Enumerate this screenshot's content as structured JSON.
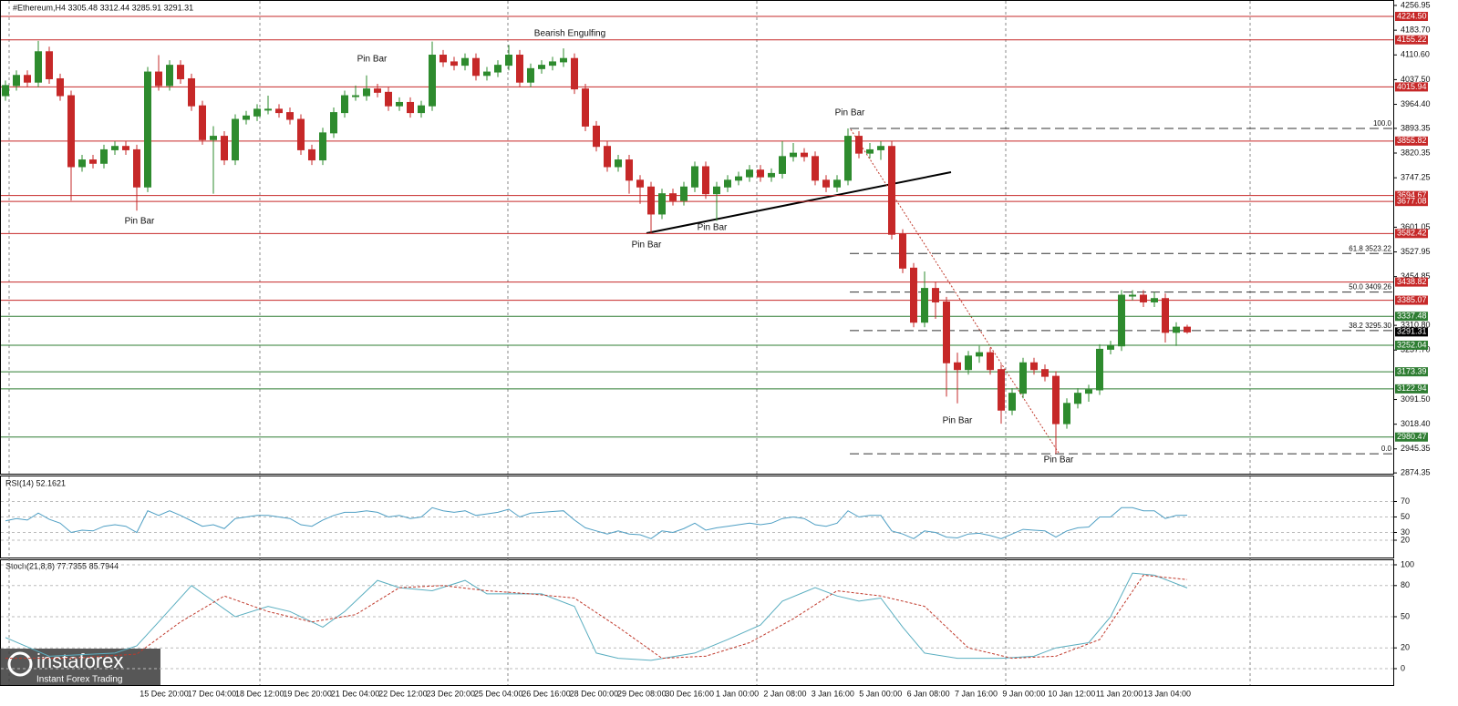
{
  "header": {
    "title": "#Ethereum,H4  3305.48 3312.44 3285.91 3291.31"
  },
  "logo": {
    "name": "instaforex",
    "tagline": "Instant Forex Trading"
  },
  "chart_data": [
    {
      "type": "candlestick",
      "up_color": "#2e8b2e",
      "down_color": "#c62828",
      "ylim": [
        2872,
        4273
      ],
      "yticks": [
        4256.95,
        {
          "value": 4183.7,
          "label": "4183.70"
        },
        {
          "value": 4110.6,
          "label": "4110.60"
        },
        {
          "value": 4037.5,
          "label": "4037.50"
        },
        {
          "value": 3964.4,
          "label": "3964.40"
        },
        3893.35,
        3820.35,
        3747.25,
        3601.05,
        3527.95,
        3454.85,
        {
          "value": 3310.8,
          "label": "3310.80"
        },
        {
          "value": 3237.7,
          "label": "3237.70"
        },
        {
          "value": 3091.5,
          "label": "3091.50"
        },
        {
          "value": 3018.4,
          "label": "3018.40"
        },
        2945.35,
        2874.35
      ],
      "open": [
        3990,
        4020,
        4050,
        4030,
        4120,
        4040,
        3990,
        3780,
        3800,
        3790,
        3830,
        3840,
        3830,
        3720,
        4060,
        4020,
        4080,
        4040,
        3960,
        3860,
        3870,
        3800,
        3920,
        3930,
        3950,
        3950,
        3940,
        3920,
        3830,
        3800,
        3880,
        3940,
        3990,
        3990,
        4010,
        4000,
        3960,
        3970,
        3940,
        3960,
        4110,
        4090,
        4080,
        4100,
        4050,
        4060,
        4080,
        4110,
        4030,
        4070,
        4080,
        4090,
        4100,
        4010,
        3900,
        3840,
        3780,
        3800,
        3740,
        3720,
        3640,
        3700,
        3680,
        3720,
        3780,
        3700,
        3720,
        3740,
        3750,
        3770,
        3750,
        3760,
        3810,
        3820,
        3810,
        3740,
        3720,
        3740,
        3870,
        3820,
        3830,
        3840,
        3580,
        3480,
        3320,
        3420,
        3380,
        3200,
        3180,
        3220,
        3230,
        3180,
        3060,
        3110,
        3200,
        3180,
        3160,
        3020,
        3080,
        3110,
        3120,
        3240,
        3250,
        3400,
        3400,
        3380,
        3390,
        3290,
        3305.48
      ],
      "high": [
        4035,
        4065,
        4065,
        4152,
        4135,
        4055,
        4005,
        3815,
        3815,
        3845,
        3855,
        3855,
        3845,
        4075,
        4110,
        4095,
        4095,
        4055,
        3975,
        3900,
        3885,
        3935,
        3945,
        3965,
        3990,
        3965,
        3955,
        3935,
        3845,
        3895,
        3955,
        4005,
        4020,
        4050,
        4025,
        4015,
        3985,
        3985,
        3975,
        4150,
        4125,
        4105,
        4115,
        4115,
        4075,
        4095,
        4140,
        4125,
        4085,
        4095,
        4105,
        4130,
        4115,
        4025,
        3915,
        3855,
        3815,
        3815,
        3755,
        3735,
        3715,
        3715,
        3735,
        3795,
        3795,
        3735,
        3755,
        3765,
        3785,
        3785,
        3775,
        3855,
        3850,
        3835,
        3825,
        3755,
        3755,
        3893,
        3885,
        3850,
        3855,
        3855,
        3595,
        3495,
        3470,
        3440,
        3395,
        3230,
        3235,
        3250,
        3245,
        3195,
        3125,
        3215,
        3215,
        3195,
        3175,
        3095,
        3125,
        3135,
        3255,
        3265,
        3415,
        3415,
        3415,
        3410,
        3405,
        3320,
        3312.44
      ],
      "low": [
        3975,
        4005,
        4015,
        4015,
        4025,
        3975,
        3680,
        3765,
        3775,
        3775,
        3815,
        3815,
        3650,
        3705,
        4005,
        4005,
        4025,
        3945,
        3845,
        3700,
        3785,
        3785,
        3905,
        3915,
        3935,
        3925,
        3905,
        3815,
        3785,
        3785,
        3865,
        3925,
        3975,
        3975,
        3985,
        3945,
        3945,
        3925,
        3925,
        3945,
        4075,
        4065,
        4065,
        4035,
        4035,
        4045,
        4065,
        4015,
        4015,
        4055,
        4065,
        4075,
        3995,
        3885,
        3825,
        3765,
        3765,
        3700,
        3670,
        3582,
        3625,
        3665,
        3665,
        3705,
        3685,
        3620,
        3705,
        3725,
        3735,
        3735,
        3735,
        3745,
        3795,
        3795,
        3725,
        3705,
        3705,
        3725,
        3805,
        3805,
        3800,
        3565,
        3465,
        3305,
        3305,
        3330,
        3100,
        3080,
        3165,
        3200,
        3165,
        3020,
        3045,
        3095,
        3165,
        3145,
        2931,
        3005,
        3065,
        3085,
        3105,
        3225,
        3235,
        3385,
        3365,
        3365,
        3260,
        3250,
        3285.91
      ],
      "close": [
        4020,
        4050,
        4030,
        4120,
        4040,
        3990,
        3780,
        3800,
        3790,
        3830,
        3840,
        3830,
        3720,
        4060,
        4020,
        4080,
        4040,
        3960,
        3860,
        3870,
        3800,
        3920,
        3930,
        3950,
        3950,
        3940,
        3920,
        3830,
        3800,
        3880,
        3940,
        3990,
        3990,
        4010,
        4000,
        3960,
        3970,
        3940,
        3960,
        4110,
        4090,
        4080,
        4100,
        4050,
        4060,
        4080,
        4110,
        4030,
        4070,
        4080,
        4090,
        4100,
        4010,
        3900,
        3840,
        3780,
        3800,
        3740,
        3720,
        3640,
        3700,
        3680,
        3720,
        3780,
        3700,
        3720,
        3740,
        3750,
        3770,
        3750,
        3760,
        3810,
        3820,
        3810,
        3740,
        3720,
        3740,
        3870,
        3820,
        3830,
        3840,
        3580,
        3480,
        3320,
        3420,
        3380,
        3200,
        3180,
        3220,
        3230,
        3180,
        3060,
        3110,
        3200,
        3180,
        3160,
        3020,
        3080,
        3110,
        3120,
        3240,
        3250,
        3400,
        3400,
        3380,
        3390,
        3290,
        3305.48,
        3291.31
      ],
      "levels": [
        {
          "value": 4224.5,
          "label": "4224.50",
          "color": "#c62828"
        },
        {
          "value": 4155.22,
          "label": "4155.22",
          "color": "#c62828"
        },
        {
          "value": 4015.94,
          "label": "4015.94",
          "color": "#c62828"
        },
        {
          "value": 3855.82,
          "label": "3855.82",
          "color": "#c62828"
        },
        {
          "value": 3694.67,
          "label": "3694.67",
          "color": "#c62828"
        },
        {
          "value": 3677.08,
          "label": "3677.08",
          "color": "#c62828"
        },
        {
          "value": 3582.42,
          "label": "3582.42",
          "color": "#c62828"
        },
        {
          "value": 3438.82,
          "label": "3438.82",
          "color": "#c62828"
        },
        {
          "value": 3385.07,
          "label": "3385.07",
          "color": "#c62828"
        },
        {
          "value": 3337.48,
          "label": "3337.48",
          "color": "#2e7d32"
        },
        {
          "value": 3252.04,
          "label": "3252.04",
          "color": "#2e7d32"
        },
        {
          "value": 3173.39,
          "label": "3173.39",
          "color": "#2e7d32"
        },
        {
          "value": 3122.94,
          "label": "3122.94",
          "color": "#2e7d32"
        },
        {
          "value": 2980.47,
          "label": "2980.47",
          "color": "#2e7d32"
        }
      ],
      "fib": [
        {
          "label": "100.0",
          "value": 3893
        },
        {
          "label": "61.8 3523.22",
          "value": 3523.22
        },
        {
          "label": "50.0 3409.26",
          "value": 3409.26
        },
        {
          "label": "38.2 3295.30",
          "value": 3295.3
        },
        {
          "label": "0.0",
          "value": 2931
        }
      ],
      "annotations": [
        "Bearish Engulfing",
        "Pin Bar",
        "Pin Bar",
        "Pin Bar",
        "Pin Bar",
        "Pin Bar",
        "Pin Bar",
        "Pin Bar"
      ],
      "x_labels": [
        "15 Dec 20:00",
        "17 Dec 04:00",
        "18 Dec 12:00",
        "19 Dec 20:00",
        "21 Dec 04:00",
        "22 Dec 12:00",
        "23 Dec 20:00",
        "25 Dec 04:00",
        "26 Dec 16:00",
        "28 Dec 00:00",
        "29 Dec 08:00",
        "30 Dec 16:00",
        "1 Jan 00:00",
        "2 Jan 08:00",
        "3 Jan 16:00",
        "5 Jan 00:00",
        "6 Jan 08:00",
        "7 Jan 16:00",
        "9 Jan 00:00",
        "10 Jan 12:00",
        "11 Jan 20:00",
        "13 Jan 04:00"
      ]
    },
    {
      "type": "line",
      "title": "RSI(14) 52.1621",
      "ylim": [
        0,
        100
      ],
      "yticks": [
        70,
        50,
        30,
        20
      ],
      "series": [
        {
          "color": "#4f9fc4",
          "values": [
            45,
            48,
            46,
            55,
            47,
            42,
            30,
            33,
            32,
            38,
            40,
            38,
            30,
            58,
            52,
            58,
            52,
            45,
            38,
            40,
            35,
            48,
            50,
            52,
            52,
            50,
            48,
            40,
            38,
            46,
            52,
            56,
            56,
            58,
            56,
            50,
            52,
            48,
            50,
            62,
            58,
            56,
            58,
            52,
            54,
            56,
            60,
            50,
            55,
            56,
            57,
            58,
            46,
            36,
            32,
            28,
            32,
            28,
            27,
            22,
            32,
            30,
            35,
            42,
            33,
            36,
            38,
            40,
            42,
            40,
            42,
            48,
            50,
            48,
            40,
            38,
            42,
            58,
            50,
            52,
            52,
            32,
            28,
            22,
            32,
            30,
            24,
            23,
            28,
            29,
            26,
            22,
            28,
            34,
            33,
            32,
            24,
            32,
            36,
            37,
            50,
            50,
            62,
            62,
            58,
            58,
            48,
            52,
            52.1621
          ]
        }
      ]
    },
    {
      "type": "line",
      "title": "Stoch(21,8,8) 77.7355 85.7944",
      "ylim": [
        0,
        100
      ],
      "yticks": [
        100,
        80,
        50,
        20,
        0
      ],
      "series": [
        {
          "color": "#5aaec0",
          "x": [
            0,
            4,
            10,
            12,
            14,
            17,
            19,
            21,
            24,
            26,
            29,
            31,
            34,
            36,
            39,
            42,
            44,
            47,
            49,
            52,
            54,
            56,
            59,
            63,
            66,
            69,
            71,
            74,
            76,
            78,
            80,
            82,
            84,
            87,
            91,
            94,
            96,
            99,
            101,
            103,
            105,
            108
          ],
          "values": [
            30,
            12,
            15,
            22,
            45,
            80,
            65,
            50,
            60,
            55,
            40,
            55,
            85,
            78,
            75,
            85,
            72,
            72,
            72,
            60,
            15,
            10,
            8,
            15,
            28,
            42,
            65,
            78,
            70,
            65,
            68,
            40,
            15,
            10,
            10,
            12,
            20,
            25,
            50,
            92,
            90,
            77.7355
          ]
        },
        {
          "color": "#c0392b",
          "dashed": true,
          "x": [
            0,
            6,
            12,
            16,
            20,
            24,
            28,
            32,
            36,
            40,
            44,
            48,
            52,
            56,
            60,
            64,
            68,
            72,
            76,
            80,
            84,
            88,
            92,
            96,
            100,
            104,
            108
          ],
          "values": [
            10,
            10,
            14,
            45,
            70,
            55,
            45,
            52,
            78,
            80,
            75,
            72,
            68,
            40,
            10,
            12,
            25,
            48,
            75,
            70,
            60,
            20,
            10,
            12,
            28,
            90,
            85.7944
          ]
        }
      ]
    }
  ]
}
